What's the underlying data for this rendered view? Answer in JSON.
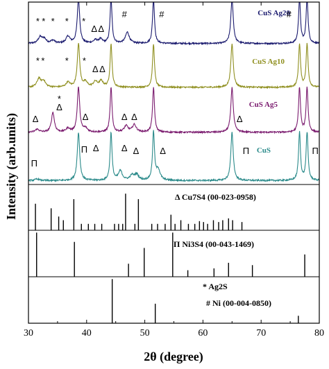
{
  "chart_data": {
    "type": "line",
    "xlabel": "2θ (degree)",
    "ylabel": "Intensity (arb.units)",
    "xlim": [
      30,
      80
    ],
    "xticks": [
      "30",
      "40",
      "50",
      "60",
      "70",
      "80"
    ],
    "grid": false,
    "xrd_panel": {
      "series": [
        {
          "name": "CuS Ag20",
          "color": "#1a1a6e",
          "baseline": 0.92,
          "peaks": [
            {
              "x": 32.0,
              "h": 0.25,
              "w": 0.4
            },
            {
              "x": 32.7,
              "h": 0.18,
              "w": 0.4
            },
            {
              "x": 34.2,
              "h": 0.12,
              "w": 0.4
            },
            {
              "x": 36.8,
              "h": 0.28,
              "w": 0.4
            },
            {
              "x": 38.6,
              "h": 1.8,
              "w": 0.25
            },
            {
              "x": 41.5,
              "h": 0.12,
              "w": 0.4
            },
            {
              "x": 42.4,
              "h": 0.16,
              "w": 0.4
            },
            {
              "x": 44.2,
              "h": 1.8,
              "w": 0.2
            },
            {
              "x": 47.0,
              "h": 0.45,
              "w": 0.4
            },
            {
              "x": 51.5,
              "h": 1.8,
              "w": 0.2
            },
            {
              "x": 65.0,
              "h": 1.8,
              "w": 0.25
            },
            {
              "x": 76.6,
              "h": 1.8,
              "w": 0.2
            },
            {
              "x": 77.9,
              "h": 1.8,
              "w": 0.2
            }
          ]
        },
        {
          "name": "CuS Ag10",
          "color": "#8f8f1f",
          "baseline": 0.92,
          "peaks": [
            {
              "x": 31.8,
              "h": 0.35,
              "w": 0.4
            },
            {
              "x": 32.6,
              "h": 0.25,
              "w": 0.4
            },
            {
              "x": 36.8,
              "h": 0.2,
              "w": 0.4
            },
            {
              "x": 38.6,
              "h": 1.8,
              "w": 0.25
            },
            {
              "x": 39.8,
              "h": 0.2,
              "w": 0.4
            },
            {
              "x": 41.5,
              "h": 0.22,
              "w": 0.4
            },
            {
              "x": 42.5,
              "h": 0.25,
              "w": 0.4
            },
            {
              "x": 44.2,
              "h": 1.8,
              "w": 0.2
            },
            {
              "x": 51.5,
              "h": 1.8,
              "w": 0.2
            },
            {
              "x": 65.0,
              "h": 1.8,
              "w": 0.25
            },
            {
              "x": 76.6,
              "h": 1.8,
              "w": 0.2
            },
            {
              "x": 77.9,
              "h": 1.8,
              "w": 0.2
            }
          ]
        },
        {
          "name": "CuS Ag5",
          "color": "#7a1a6e",
          "baseline": 0.92,
          "peaks": [
            {
              "x": 31.5,
              "h": 0.12,
              "w": 0.4
            },
            {
              "x": 34.2,
              "h": 0.8,
              "w": 0.3
            },
            {
              "x": 36.8,
              "h": 0.15,
              "w": 0.4
            },
            {
              "x": 38.6,
              "h": 1.8,
              "w": 0.25
            },
            {
              "x": 39.8,
              "h": 0.15,
              "w": 0.4
            },
            {
              "x": 44.2,
              "h": 1.8,
              "w": 0.2
            },
            {
              "x": 46.8,
              "h": 0.25,
              "w": 0.4
            },
            {
              "x": 48.2,
              "h": 0.3,
              "w": 0.4
            },
            {
              "x": 51.5,
              "h": 1.8,
              "w": 0.2
            },
            {
              "x": 65.0,
              "h": 1.8,
              "w": 0.25
            },
            {
              "x": 76.6,
              "h": 1.8,
              "w": 0.2
            },
            {
              "x": 77.9,
              "h": 1.8,
              "w": 0.2
            }
          ]
        },
        {
          "name": "CuS",
          "color": "#2a8a8a",
          "baseline": 0.92,
          "peaks": [
            {
              "x": 31.5,
              "h": 0.06,
              "w": 0.4
            },
            {
              "x": 38.6,
              "h": 1.8,
              "w": 0.25
            },
            {
              "x": 44.2,
              "h": 1.8,
              "w": 0.2
            },
            {
              "x": 45.8,
              "h": 0.35,
              "w": 0.4
            },
            {
              "x": 47.8,
              "h": 0.18,
              "w": 0.4
            },
            {
              "x": 48.6,
              "h": 0.22,
              "w": 0.4
            },
            {
              "x": 51.5,
              "h": 1.8,
              "w": 0.2
            },
            {
              "x": 52.3,
              "h": 0.4,
              "w": 0.4
            },
            {
              "x": 65.0,
              "h": 1.8,
              "w": 0.25
            },
            {
              "x": 76.6,
              "h": 1.8,
              "w": 0.2
            },
            {
              "x": 77.9,
              "h": 1.8,
              "w": 0.2
            }
          ]
        }
      ],
      "annotations": [
        {
          "series": "CuS Ag20",
          "text": "*",
          "x": 31.6
        },
        {
          "series": "CuS Ag20",
          "text": "*",
          "x": 32.6
        },
        {
          "series": "CuS Ag20",
          "text": "*",
          "x": 34.2
        },
        {
          "series": "CuS Ag20",
          "text": "*",
          "x": 36.6
        },
        {
          "series": "CuS Ag20",
          "text": "*",
          "x": 39.5
        },
        {
          "series": "CuS Ag20",
          "text": "Δ",
          "x": 41.3
        },
        {
          "series": "CuS Ag20",
          "text": "Δ",
          "x": 42.5
        },
        {
          "series": "CuS Ag20",
          "text": "#",
          "x": 46.5
        },
        {
          "series": "CuS Ag20",
          "text": "#",
          "x": 52.9
        },
        {
          "series": "CuS Ag20",
          "text": "#",
          "x": 74.8
        },
        {
          "series": "CuS Ag10",
          "text": "*",
          "x": 31.6
        },
        {
          "series": "CuS Ag10",
          "text": "*",
          "x": 32.5
        },
        {
          "series": "CuS Ag10",
          "text": "*",
          "x": 36.6
        },
        {
          "series": "CuS Ag10",
          "text": "*",
          "x": 39.6
        },
        {
          "series": "CuS Ag10",
          "text": "Δ",
          "x": 41.5
        },
        {
          "series": "CuS Ag10",
          "text": "Δ",
          "x": 42.7
        },
        {
          "series": "CuS Ag5",
          "text": "*",
          "x": 35.3
        },
        {
          "series": "CuS Ag5",
          "text": "Δ",
          "x": 35.3
        },
        {
          "series": "CuS Ag5",
          "text": "Δ",
          "x": 31.2
        },
        {
          "series": "CuS Ag5",
          "text": "Δ",
          "x": 39.8
        },
        {
          "series": "CuS Ag5",
          "text": "Δ",
          "x": 46.5
        },
        {
          "series": "CuS Ag5",
          "text": "Δ",
          "x": 48.2
        },
        {
          "series": "CuS Ag5",
          "text": "Δ",
          "x": 66.3
        },
        {
          "series": "CuS",
          "text": "Π",
          "x": 31.0
        },
        {
          "series": "CuS",
          "text": "Π",
          "x": 39.6
        },
        {
          "series": "CuS",
          "text": "Δ",
          "x": 41.6
        },
        {
          "series": "CuS",
          "text": "Δ",
          "x": 46.5
        },
        {
          "series": "CuS",
          "text": "Δ",
          "x": 48.5
        },
        {
          "series": "CuS",
          "text": "Δ",
          "x": 53.1
        },
        {
          "series": "CuS",
          "text": "Π",
          "x": 67.4
        },
        {
          "series": "CuS",
          "text": "Π",
          "x": 79.3
        }
      ]
    },
    "reference_panels": [
      {
        "labels": [
          {
            "text": "Δ Cu7S4 (00-023-0958)"
          }
        ],
        "sticks": [
          {
            "x": 31.2,
            "h": 0.58
          },
          {
            "x": 33.9,
            "h": 0.48
          },
          {
            "x": 35.2,
            "h": 0.3
          },
          {
            "x": 36.0,
            "h": 0.22
          },
          {
            "x": 37.8,
            "h": 0.68
          },
          {
            "x": 39.1,
            "h": 0.14
          },
          {
            "x": 40.3,
            "h": 0.14
          },
          {
            "x": 41.4,
            "h": 0.14
          },
          {
            "x": 42.6,
            "h": 0.14
          },
          {
            "x": 44.8,
            "h": 0.14
          },
          {
            "x": 45.5,
            "h": 0.14
          },
          {
            "x": 46.2,
            "h": 0.14
          },
          {
            "x": 46.7,
            "h": 0.8
          },
          {
            "x": 48.3,
            "h": 0.14
          },
          {
            "x": 48.9,
            "h": 0.68
          },
          {
            "x": 51.2,
            "h": 0.14
          },
          {
            "x": 52.2,
            "h": 0.14
          },
          {
            "x": 53.5,
            "h": 0.14
          },
          {
            "x": 54.5,
            "h": 0.34
          },
          {
            "x": 55.2,
            "h": 0.14
          },
          {
            "x": 56.2,
            "h": 0.22
          },
          {
            "x": 57.5,
            "h": 0.14
          },
          {
            "x": 58.6,
            "h": 0.14
          },
          {
            "x": 59.4,
            "h": 0.2
          },
          {
            "x": 60.1,
            "h": 0.18
          },
          {
            "x": 60.8,
            "h": 0.14
          },
          {
            "x": 61.8,
            "h": 0.22
          },
          {
            "x": 62.7,
            "h": 0.18
          },
          {
            "x": 63.4,
            "h": 0.22
          },
          {
            "x": 64.4,
            "h": 0.26
          },
          {
            "x": 65.1,
            "h": 0.22
          },
          {
            "x": 66.7,
            "h": 0.18
          }
        ]
      },
      {
        "labels": [
          {
            "text": "Π Ni3S4 (00-043-1469)"
          }
        ],
        "sticks": [
          {
            "x": 31.4,
            "h": 0.95
          },
          {
            "x": 37.9,
            "h": 0.75
          },
          {
            "x": 47.2,
            "h": 0.28
          },
          {
            "x": 49.9,
            "h": 0.62
          },
          {
            "x": 54.8,
            "h": 0.95
          },
          {
            "x": 57.4,
            "h": 0.14
          },
          {
            "x": 61.9,
            "h": 0.18
          },
          {
            "x": 64.4,
            "h": 0.3
          },
          {
            "x": 68.5,
            "h": 0.25
          },
          {
            "x": 77.5,
            "h": 0.48
          }
        ]
      },
      {
        "labels": [
          {
            "text": "* Ag2S"
          },
          {
            "text": "# Ni (00-004-0850)"
          }
        ],
        "sticks": [
          {
            "x": 44.4,
            "h": 0.95
          },
          {
            "x": 51.8,
            "h": 0.42
          },
          {
            "x": 76.4,
            "h": 0.16
          }
        ]
      }
    ]
  }
}
